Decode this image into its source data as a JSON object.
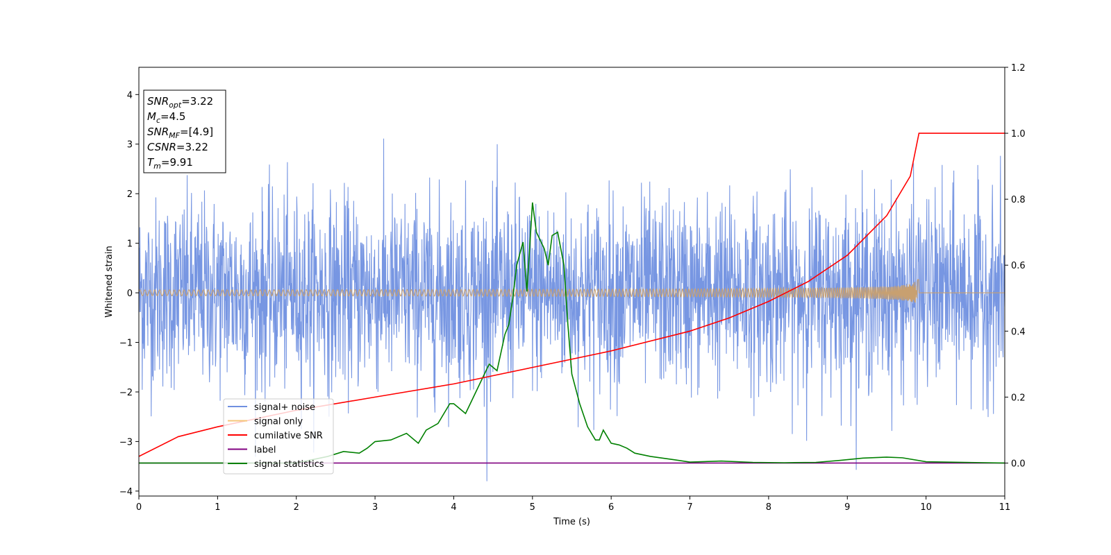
{
  "chart_data": {
    "type": "line",
    "xlabel": "Time (s)",
    "ylabel": "Whitened strain",
    "xlim": [
      0,
      11
    ],
    "ylim_left": [
      -4.1,
      4.55
    ],
    "ylim_right": [
      -0.1,
      1.2
    ],
    "x_ticks": [
      "0",
      "1",
      "2",
      "3",
      "4",
      "5",
      "6",
      "7",
      "8",
      "9",
      "10",
      "11"
    ],
    "y_ticks_left": [
      "−4",
      "−3",
      "−2",
      "−1",
      "0",
      "1",
      "2",
      "3",
      "4"
    ],
    "y_ticks_right": [
      "0.0",
      "0.2",
      "0.4",
      "0.6",
      "0.8",
      "1.0",
      "1.2"
    ],
    "grid": false,
    "legend_position": "lower-left",
    "stats_box": [
      {
        "sym": "SNR",
        "sub": "opt",
        "value": "=3.22"
      },
      {
        "sym": "M",
        "sub": "c",
        "value": "=4.5"
      },
      {
        "sym": "SNR",
        "sub": "MF",
        "value": "=[4.9]"
      },
      {
        "sym": "CSNR",
        "sub": "",
        "value": "=3.22"
      },
      {
        "sym": "T",
        "sub": "m",
        "value": "=9.91"
      }
    ],
    "series": [
      {
        "name": "signal+ noise",
        "color": "#7090e0",
        "axis": "left",
        "note": "white noise, amplitude ~ ±2.5"
      },
      {
        "name": "signal only",
        "color": "#f5c67a",
        "axis": "left",
        "chirp_end": 9.91,
        "amplitude_max": 0.28
      },
      {
        "name": "cumilative SNR",
        "color": "#ff0000",
        "axis": "right",
        "x": [
          0,
          0.5,
          1,
          2,
          3,
          4,
          5,
          6,
          7,
          7.5,
          8,
          8.5,
          9,
          9.5,
          9.8,
          9.91,
          11
        ],
        "y": [
          0.02,
          0.08,
          0.11,
          0.16,
          0.2,
          0.24,
          0.29,
          0.34,
          0.4,
          0.44,
          0.49,
          0.55,
          0.63,
          0.75,
          0.87,
          1.0,
          1.0
        ]
      },
      {
        "name": "label",
        "color": "#800080",
        "axis": "right",
        "x": [
          0,
          11
        ],
        "y": [
          0,
          0
        ]
      },
      {
        "name": "signal statistics",
        "color": "#008000",
        "axis": "right",
        "x": [
          0,
          2.0,
          2.4,
          2.6,
          2.8,
          2.9,
          3.0,
          3.2,
          3.4,
          3.55,
          3.65,
          3.8,
          3.95,
          4.0,
          4.05,
          4.15,
          4.25,
          4.35,
          4.45,
          4.5,
          4.55,
          4.65,
          4.7,
          4.75,
          4.8,
          4.88,
          4.93,
          5.0,
          5.05,
          5.15,
          5.2,
          5.25,
          5.32,
          5.4,
          5.45,
          5.5,
          5.6,
          5.7,
          5.8,
          5.85,
          5.9,
          5.95,
          6.0,
          6.1,
          6.2,
          6.3,
          6.5,
          6.8,
          7.0,
          7.4,
          7.8,
          8.2,
          8.6,
          8.9,
          9.2,
          9.5,
          9.7,
          10.0,
          11.0
        ],
        "y": [
          0.0,
          0.0,
          0.02,
          0.035,
          0.03,
          0.045,
          0.065,
          0.07,
          0.09,
          0.06,
          0.1,
          0.12,
          0.18,
          0.18,
          0.17,
          0.15,
          0.2,
          0.25,
          0.3,
          0.29,
          0.28,
          0.39,
          0.42,
          0.5,
          0.6,
          0.67,
          0.52,
          0.79,
          0.7,
          0.65,
          0.6,
          0.69,
          0.7,
          0.6,
          0.42,
          0.27,
          0.18,
          0.11,
          0.07,
          0.07,
          0.1,
          0.08,
          0.06,
          0.055,
          0.045,
          0.03,
          0.02,
          0.01,
          0.003,
          0.006,
          0.002,
          0.001,
          0.002,
          0.008,
          0.015,
          0.018,
          0.016,
          0.004,
          0.0
        ]
      }
    ]
  }
}
